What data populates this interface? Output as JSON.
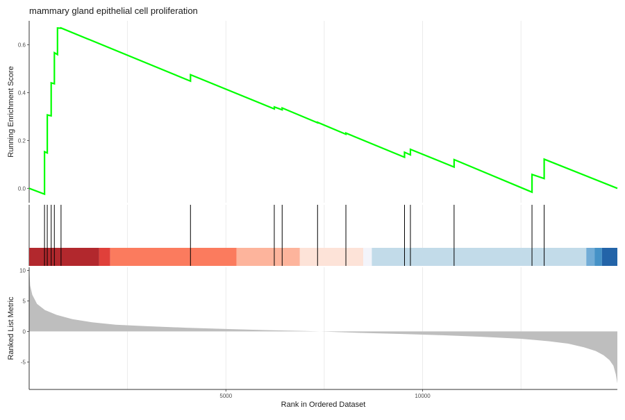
{
  "chart_data": {
    "type": "line",
    "title": "mammary gland epithelial cell proliferation",
    "xlabel": "Rank in Ordered Dataset",
    "xlim": [
      0,
      14950
    ],
    "x_ticks": [
      5000,
      10000
    ],
    "x_tick_labels": [
      "5000",
      "10000"
    ],
    "grid": true,
    "panels": {
      "running_score": {
        "ylabel": "Running Enrichment Score",
        "ylim": [
          -0.06,
          0.7
        ],
        "y_ticks": [
          0.0,
          0.2,
          0.4,
          0.6
        ],
        "y_tick_labels": [
          "0.0",
          "0.2",
          "0.4",
          "0.6"
        ],
        "line_color": "#00ff00",
        "series": [
          {
            "x": [
              0,
              390,
              390,
              460,
              460,
              560,
              560,
              640,
              640,
              720,
              720,
              810,
              810,
              4100,
              4100,
              6230,
              6230,
              6430,
              6430,
              7330,
              7330,
              8050,
              8050,
              9540,
              9540,
              9690,
              9690,
              10800,
              10800,
              12780,
              12780,
              13090,
              13090,
              14950
            ],
            "y": [
              0.0,
              -0.024,
              0.153,
              0.148,
              0.307,
              0.303,
              0.441,
              0.437,
              0.567,
              0.559,
              0.67,
              0.669,
              0.67,
              0.448,
              0.475,
              0.332,
              0.34,
              0.328,
              0.336,
              0.274,
              0.276,
              0.226,
              0.231,
              0.13,
              0.151,
              0.14,
              0.163,
              0.089,
              0.12,
              -0.016,
              0.058,
              0.041,
              0.122,
              0.0
            ]
          }
        ]
      },
      "hit_positions": [
        390,
        460,
        560,
        640,
        810,
        4100,
        6230,
        6430,
        7330,
        8050,
        9540,
        9690,
        10800,
        12780,
        13090
      ],
      "color_strip": [
        {
          "from": 0,
          "to": 1780,
          "color": "#b2282d"
        },
        {
          "from": 1780,
          "to": 2060,
          "color": "#e0403a"
        },
        {
          "from": 2060,
          "to": 5270,
          "color": "#fb7b5e"
        },
        {
          "from": 5270,
          "to": 6880,
          "color": "#fdb49c"
        },
        {
          "from": 6880,
          "to": 8490,
          "color": "#fde3d8"
        },
        {
          "from": 8490,
          "to": 8710,
          "color": "#f3f4fa"
        },
        {
          "from": 8710,
          "to": 14160,
          "color": "#c2dbe9"
        },
        {
          "from": 14160,
          "to": 14370,
          "color": "#72acd6"
        },
        {
          "from": 14370,
          "to": 14560,
          "color": "#4592c7"
        },
        {
          "from": 14560,
          "to": 14950,
          "color": "#2364a8"
        }
      ],
      "ranked_metric": {
        "ylabel": "Ranked List Metric",
        "ylim": [
          -9.5,
          10.5
        ],
        "y_ticks": [
          -5,
          0,
          5,
          10
        ],
        "y_tick_labels": [
          "-5",
          "0",
          "5",
          "10"
        ],
        "fill_color": "#bebebe",
        "x": [
          0,
          25,
          80,
          200,
          400,
          700,
          1100,
          1600,
          2200,
          3000,
          4000,
          5000,
          6000,
          7000,
          7400,
          7800,
          8500,
          9500,
          10500,
          11500,
          12500,
          13200,
          13700,
          14100,
          14400,
          14600,
          14750,
          14850,
          14910,
          14950
        ],
        "y": [
          10.5,
          7.5,
          6.0,
          4.5,
          3.5,
          2.7,
          2.0,
          1.5,
          1.1,
          0.85,
          0.6,
          0.4,
          0.22,
          0.08,
          0.0,
          -0.1,
          -0.25,
          -0.42,
          -0.62,
          -0.87,
          -1.2,
          -1.6,
          -2.0,
          -2.6,
          -3.2,
          -3.9,
          -4.7,
          -5.6,
          -7.0,
          -8.5
        ]
      }
    }
  }
}
